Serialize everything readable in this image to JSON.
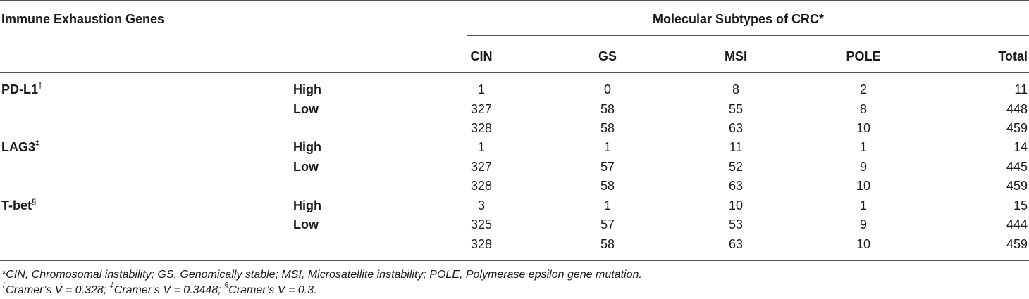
{
  "table": {
    "header_left": "Immune Exhaustion Genes",
    "header_group": "Molecular Subtypes of CRC*",
    "columns": [
      "CIN",
      "GS",
      "MSI",
      "POLE",
      "Total"
    ],
    "groups": [
      {
        "gene": "PD-L1",
        "sup": "†",
        "rows": [
          {
            "label": "High",
            "values": [
              "1",
              "0",
              "8",
              "2",
              "11"
            ]
          },
          {
            "label": "Low",
            "values": [
              "327",
              "58",
              "55",
              "8",
              "448"
            ]
          },
          {
            "label": "",
            "values": [
              "328",
              "58",
              "63",
              "10",
              "459"
            ]
          }
        ]
      },
      {
        "gene": "LAG3",
        "sup": "‡",
        "rows": [
          {
            "label": "High",
            "values": [
              "1",
              "1",
              "11",
              "1",
              "14"
            ]
          },
          {
            "label": "Low",
            "values": [
              "327",
              "57",
              "52",
              "9",
              "445"
            ]
          },
          {
            "label": "",
            "values": [
              "328",
              "58",
              "63",
              "10",
              "459"
            ]
          }
        ]
      },
      {
        "gene": "T-bet",
        "sup": "§",
        "rows": [
          {
            "label": "High",
            "values": [
              "3",
              "1",
              "10",
              "1",
              "15"
            ]
          },
          {
            "label": "Low",
            "values": [
              "325",
              "57",
              "53",
              "9",
              "444"
            ]
          },
          {
            "label": "",
            "values": [
              "328",
              "58",
              "63",
              "10",
              "459"
            ]
          }
        ]
      }
    ]
  },
  "footnotes": {
    "line1": "*CIN, Chromosomal instability; GS, Genomically stable; MSI, Microsatellite instability; POLE, Polymerase epsilon gene mutation.",
    "line2": [
      {
        "sup": "†",
        "text": "Cramer’s V = 0.328; "
      },
      {
        "sup": "‡",
        "text": "Cramer’s V = 0.3448; "
      },
      {
        "sup": "§",
        "text": "Cramer’s V = 0.3."
      }
    ]
  }
}
